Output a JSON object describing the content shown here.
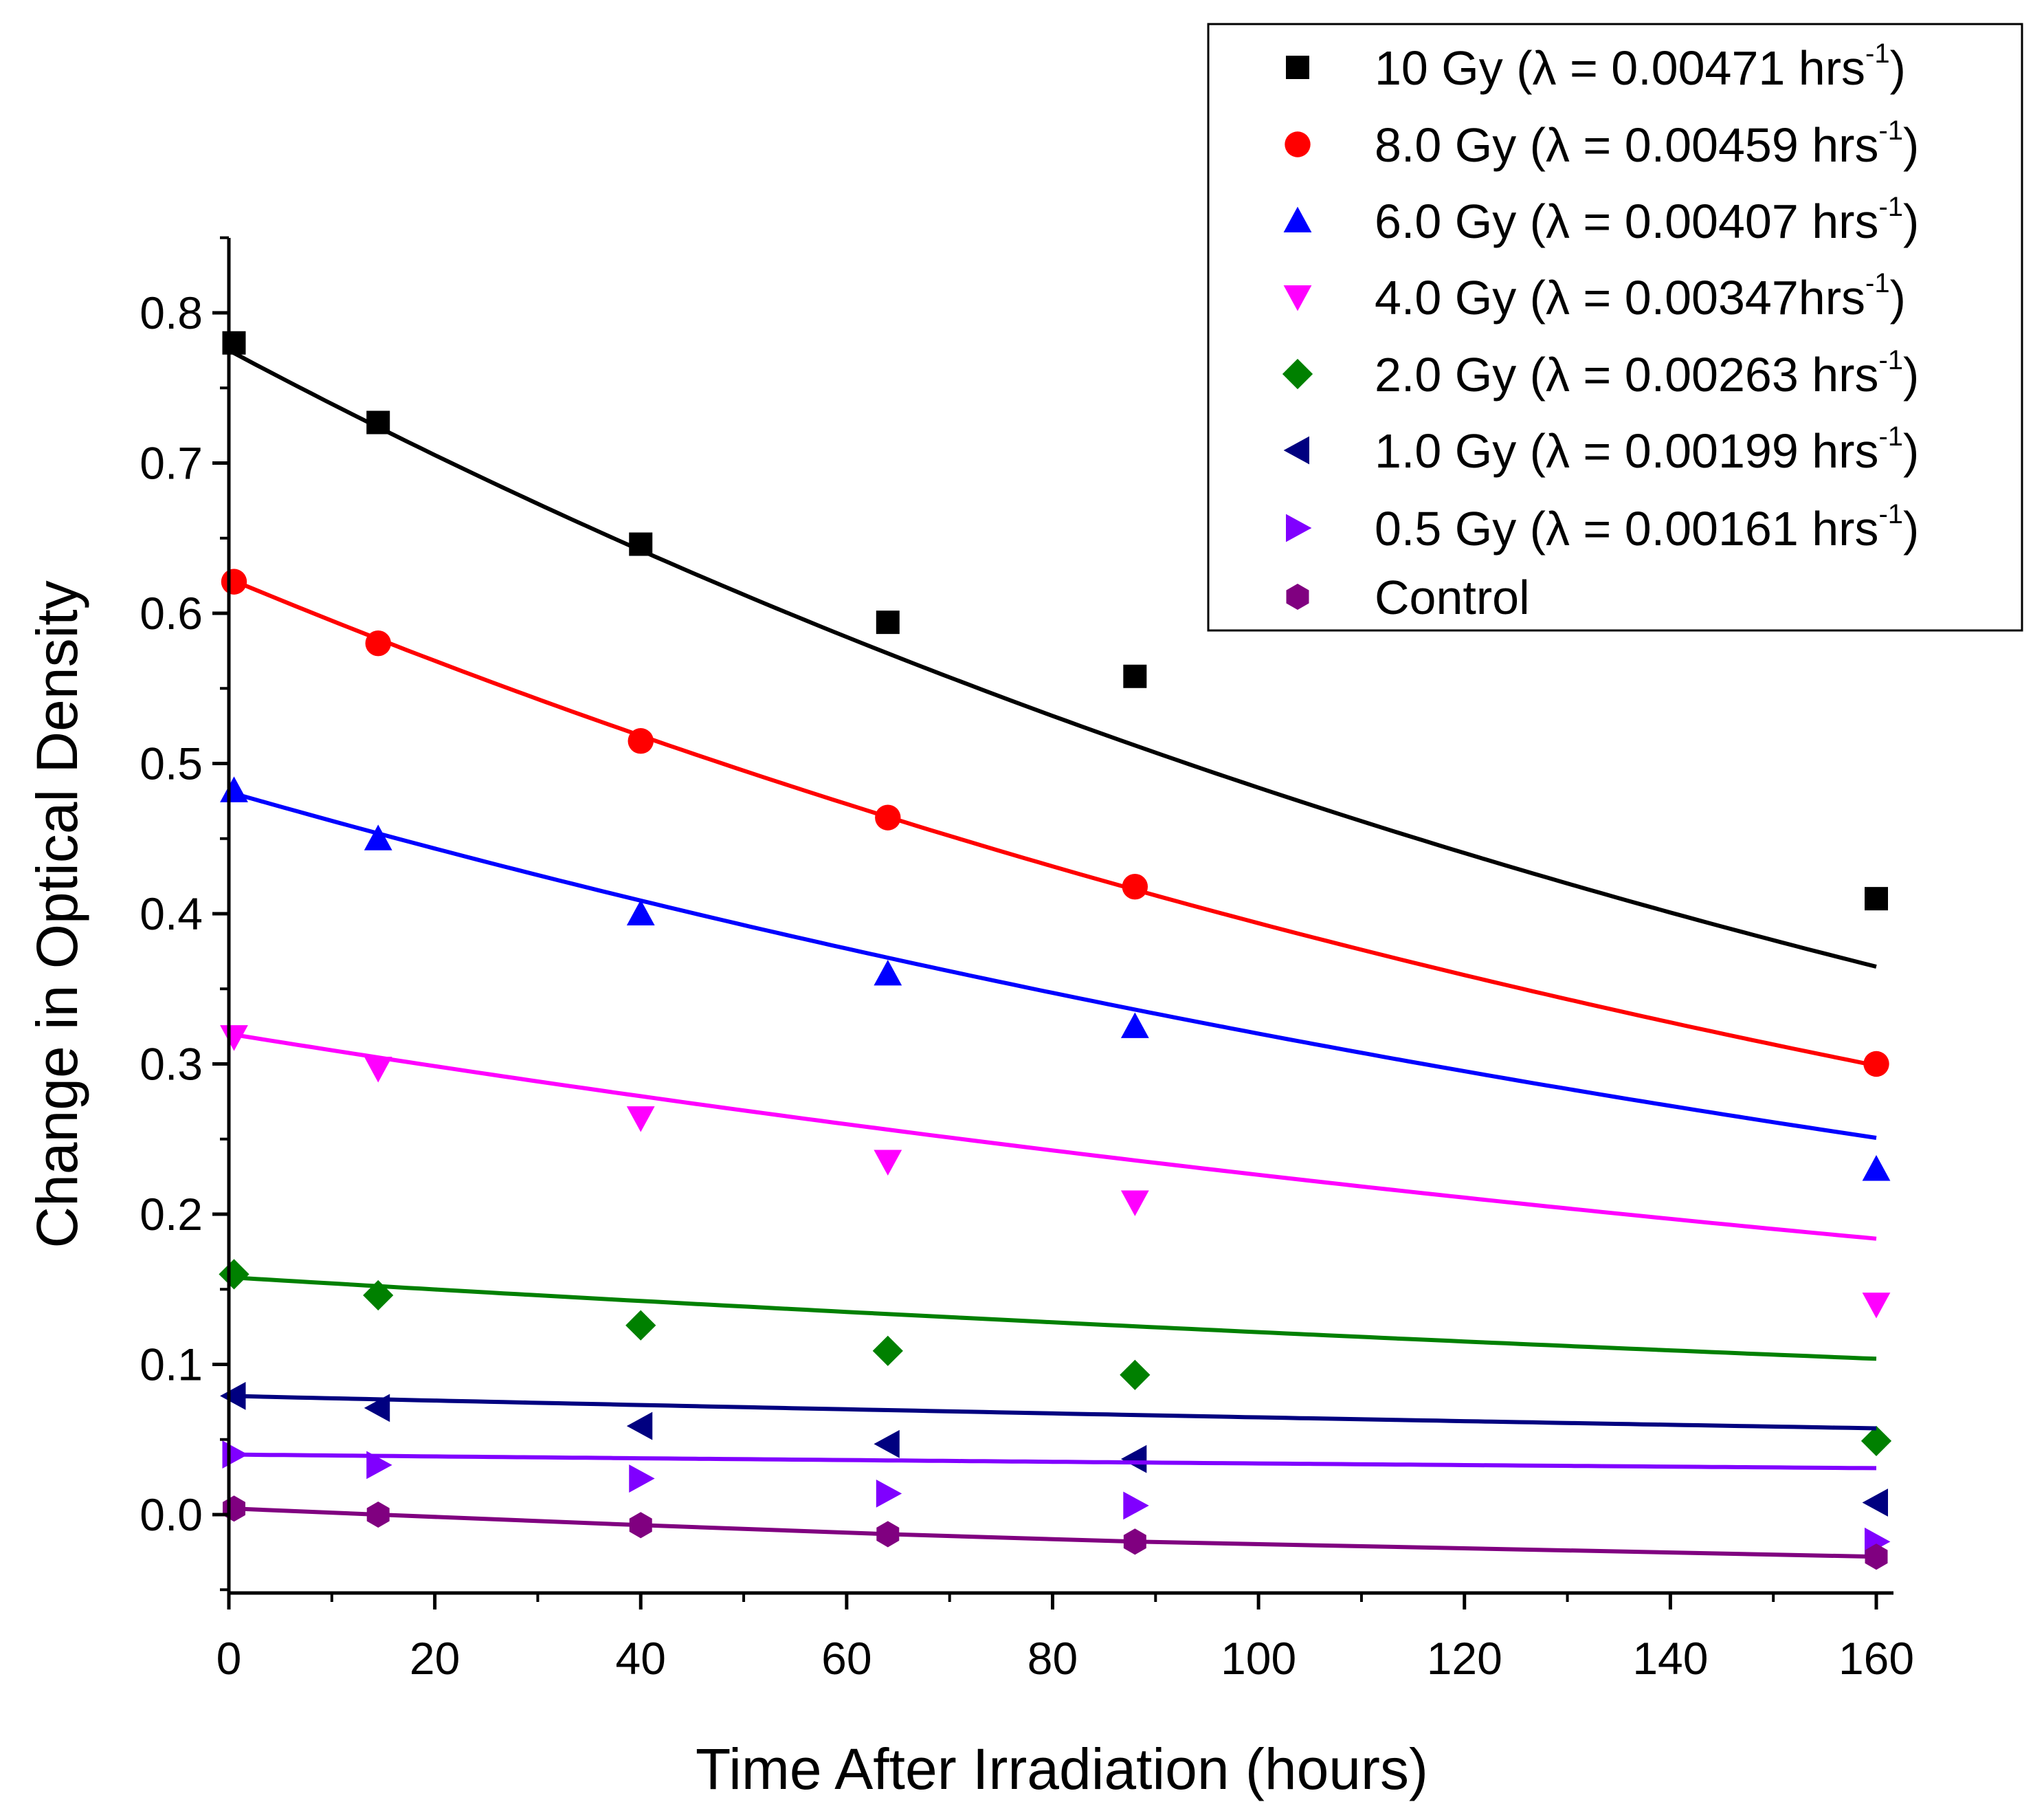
{
  "chart_data": {
    "type": "scatter",
    "title": "",
    "xlabel": "Time After Irradiation (hours)",
    "ylabel": "Change in Optical Density",
    "xlim": [
      0,
      162
    ],
    "ylim": [
      -0.05,
      0.85
    ],
    "x_ticks": [
      0,
      20,
      40,
      60,
      80,
      100,
      120,
      140,
      160
    ],
    "x_tick_labels": [
      "0",
      "20",
      "40",
      "60",
      "80",
      "100",
      "120",
      "140",
      "160"
    ],
    "y_ticks": [
      0.0,
      0.1,
      0.2,
      0.3,
      0.4,
      0.5,
      0.6,
      0.7,
      0.8
    ],
    "y_tick_labels": [
      "0.0",
      "0.1",
      "0.2",
      "0.3",
      "0.4",
      "0.5",
      "0.6",
      "0.7",
      "0.8"
    ],
    "grid": false,
    "legend_position": "top-right",
    "x": [
      0.5,
      14.5,
      40,
      64,
      88,
      160
    ],
    "series": [
      {
        "name": "10 Gy",
        "legend_prefix": "10 Gy (λ = 0.00471 hrs",
        "legend_sup": "-1",
        "legend_suffix": ")",
        "color": "#000000",
        "marker": "square",
        "values": [
          0.78,
          0.727,
          0.646,
          0.594,
          0.558,
          0.41
        ],
        "fit": {
          "a": 0.775,
          "lambda": 0.00471
        }
      },
      {
        "name": "8.0 Gy",
        "legend_prefix": "8.0 Gy (λ = 0.00459 hrs",
        "legend_sup": "-1",
        "legend_suffix": ")",
        "color": "#ff0000",
        "marker": "circle",
        "values": [
          0.621,
          0.58,
          0.515,
          0.464,
          0.418,
          0.3
        ],
        "fit": {
          "a": 0.623,
          "lambda": 0.00459
        }
      },
      {
        "name": "6.0 Gy",
        "legend_prefix": "6.0 Gy (λ = 0.00407 hrs",
        "legend_sup": "-1",
        "legend_suffix": ")",
        "color": "#0000ff",
        "marker": "triangle-up",
        "values": [
          0.482,
          0.45,
          0.4,
          0.36,
          0.325,
          0.23
        ],
        "fit": {
          "a": 0.481,
          "lambda": 0.00407
        }
      },
      {
        "name": "4.0 Gy",
        "legend_prefix": "4.0 Gy (λ = 0.00347hrs",
        "legend_sup": "-1",
        "legend_suffix": ")",
        "color": "#ff00ff",
        "marker": "triangle-down",
        "values": [
          0.318,
          0.297,
          0.264,
          0.235,
          0.208,
          0.14
        ],
        "fit": {
          "a": 0.32,
          "lambda": 0.00347
        }
      },
      {
        "name": "2.0 Gy",
        "legend_prefix": "2.0 Gy (λ = 0.00263 hrs",
        "legend_sup": "-1",
        "legend_suffix": ")",
        "color": "#008000",
        "marker": "diamond",
        "values": [
          0.16,
          0.146,
          0.126,
          0.109,
          0.093,
          0.049
        ],
        "fit": {
          "a": 0.158,
          "lambda": 0.00263
        }
      },
      {
        "name": "1.0 Gy",
        "legend_prefix": "1.0 Gy (λ = 0.00199 hrs",
        "legend_sup": "-1",
        "legend_suffix": ")",
        "color": "#000080",
        "marker": "triangle-left",
        "values": [
          0.079,
          0.071,
          0.059,
          0.047,
          0.037,
          0.008
        ],
        "fit": {
          "a": 0.079,
          "lambda": 0.00199
        }
      },
      {
        "name": "0.5 Gy",
        "legend_prefix": "0.5 Gy (λ = 0.00161 hrs",
        "legend_sup": "-1",
        "legend_suffix": ")",
        "color": "#8000ff",
        "marker": "triangle-right",
        "values": [
          0.04,
          0.033,
          0.024,
          0.014,
          0.006,
          -0.018
        ],
        "fit": {
          "a": 0.04,
          "lambda": 0.00161
        }
      },
      {
        "name": "Control",
        "legend_prefix": "Control",
        "legend_sup": "",
        "legend_suffix": "",
        "color": "#800080",
        "marker": "hexagon",
        "values": [
          0.004,
          0.0,
          -0.007,
          -0.013,
          -0.018,
          -0.028
        ],
        "fit": null,
        "line": [
          0.004,
          0.0,
          -0.007,
          -0.013,
          -0.018,
          -0.028
        ]
      }
    ]
  }
}
